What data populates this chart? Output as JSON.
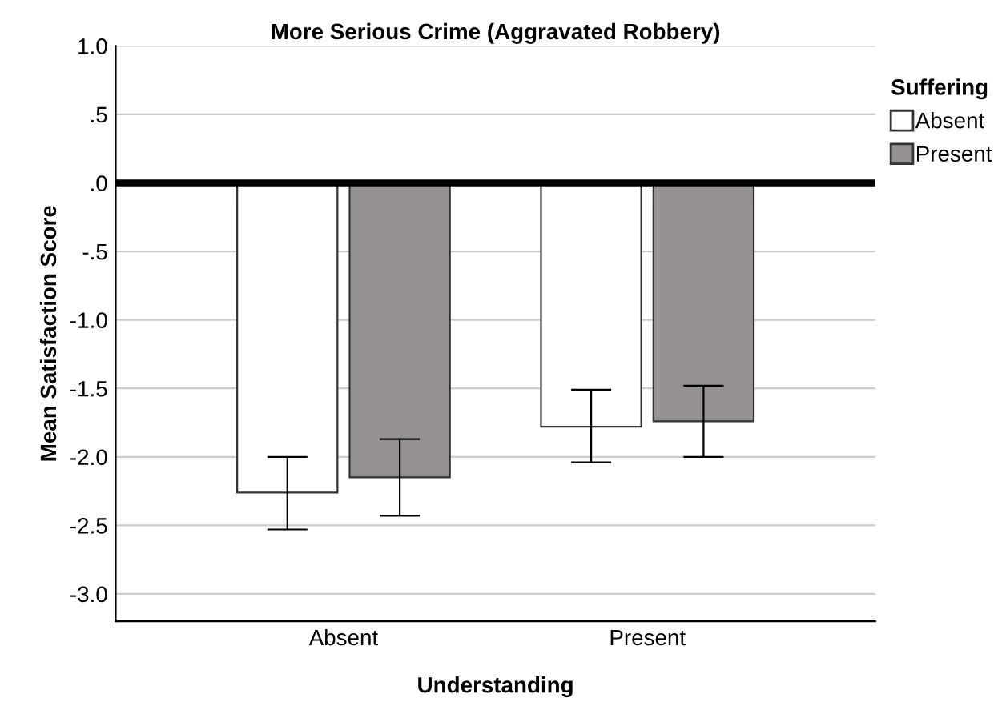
{
  "chart_data": {
    "type": "bar",
    "title": "More Serious Crime (Aggravated Robbery)",
    "xlabel": "Understanding",
    "ylabel": "Mean Satisfaction Score",
    "legend_title": "Suffering",
    "categories": [
      "Absent",
      "Present"
    ],
    "series": [
      {
        "name": "Absent",
        "color": "#ffffff",
        "values": [
          -2.26,
          -1.78
        ],
        "errors": [
          [
            -2.53,
            -2.0
          ],
          [
            -2.04,
            -1.51
          ]
        ]
      },
      {
        "name": "Present",
        "color": "#969291",
        "values": [
          -2.15,
          -1.74
        ],
        "errors": [
          [
            -2.43,
            -1.87
          ],
          [
            -2.0,
            -1.48
          ]
        ]
      }
    ],
    "ylim": [
      -3.2,
      1.0
    ],
    "yticks": [
      {
        "value": 1.0,
        "label": "1.0"
      },
      {
        "value": 0.5,
        "label": ".5"
      },
      {
        "value": 0,
        "label": ".0"
      },
      {
        "value": -0.5,
        "label": "-.5"
      },
      {
        "value": -1.0,
        "label": "-1.0"
      },
      {
        "value": -1.5,
        "label": "-1.5"
      },
      {
        "value": -2.0,
        "label": "-2.0"
      },
      {
        "value": -2.5,
        "label": "-2.5"
      },
      {
        "value": -3.0,
        "label": "-3.0"
      }
    ],
    "ref_lines": [
      {
        "axis": "y",
        "value": 0,
        "color": "#000000"
      }
    ],
    "grid": "y",
    "legend": "top right"
  }
}
